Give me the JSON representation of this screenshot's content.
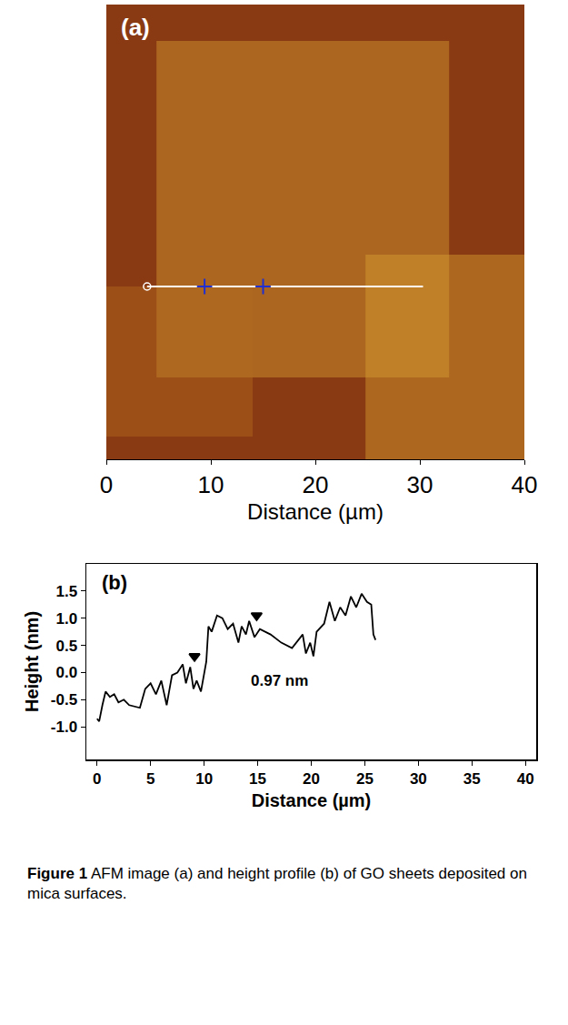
{
  "chart_data": [
    {
      "type": "image",
      "label": "(a)",
      "x_label": "Distance (µm)",
      "xlim": [
        0,
        40
      ],
      "xticks": [
        0,
        10,
        20,
        30,
        40
      ],
      "ylim": [
        0,
        1
      ],
      "tick_labels": "x",
      "series": [
        {
          "type": "line",
          "color": "#ffffff",
          "marker": "circle-open",
          "x": [
            3.9,
            30.3
          ],
          "y": [
            0.38,
            0.38
          ]
        },
        {
          "type": "scatter",
          "color": "#1f2fd0",
          "marker": "cross",
          "x": [
            9.4,
            15.0
          ],
          "y": [
            0.38,
            0.38
          ]
        }
      ]
    },
    {
      "type": "line",
      "label": "(b)",
      "x_label": "Distance (µm)",
      "y_label": "Height (nm)",
      "xlim": [
        -1,
        41
      ],
      "xticks": [
        0,
        5,
        10,
        15,
        20,
        25,
        30,
        35,
        40
      ],
      "ylim": [
        -1.6,
        2.0
      ],
      "yticks": [
        {
          "value": -1,
          "label": "-1.0"
        },
        {
          "value": -0.5,
          "label": "-0.5"
        },
        {
          "value": 0,
          "label": "0.0"
        },
        {
          "value": 0.5,
          "label": "0.5"
        },
        {
          "value": 1,
          "label": "1.0"
        },
        {
          "value": 1.5,
          "label": "1.5"
        }
      ],
      "annotations": [
        {
          "text": "0.97 nm",
          "x": 17,
          "y": -0.15
        }
      ],
      "series": [
        {
          "type": "line",
          "color": "#000000",
          "x": [
            0,
            0.2,
            0.5,
            0.8,
            1.2,
            1.6,
            2,
            2.5,
            3,
            4,
            4.5,
            5,
            5.5,
            6,
            6.5,
            7,
            7.5,
            8,
            8.3,
            8.7,
            9,
            9.3,
            9.7,
            10.2,
            10.4,
            10.7,
            11.2,
            11.7,
            12.2,
            12.7,
            13.2,
            13.5,
            13.9,
            14.2,
            14.7,
            15.2,
            16.2,
            17.2,
            18.2,
            19.2,
            19.5,
            19.9,
            20.2,
            20.5,
            21.2,
            21.7,
            22.2,
            22.7,
            23.2,
            23.7,
            24.2,
            24.7,
            25.2,
            25.6,
            25.8,
            26
          ],
          "values": [
            -0.85,
            -0.9,
            -0.6,
            -0.35,
            -0.45,
            -0.4,
            -0.55,
            -0.5,
            -0.6,
            -0.65,
            -0.3,
            -0.2,
            -0.4,
            -0.15,
            -0.6,
            -0.05,
            0.0,
            0.15,
            -0.2,
            0.1,
            -0.3,
            -0.15,
            -0.35,
            0.2,
            0.85,
            0.75,
            1.05,
            1.0,
            0.8,
            0.9,
            0.55,
            0.85,
            0.7,
            0.95,
            0.65,
            0.8,
            0.7,
            0.55,
            0.45,
            0.7,
            0.35,
            0.55,
            0.3,
            0.75,
            0.9,
            1.3,
            0.95,
            1.2,
            1.05,
            1.4,
            1.2,
            1.45,
            1.3,
            1.25,
            0.7,
            0.6
          ]
        },
        {
          "type": "scatter",
          "color": "#000000",
          "marker": "triangle-down",
          "x": [
            9.1,
            14.9
          ],
          "values": [
            0.3,
            1.05
          ]
        }
      ]
    }
  ],
  "caption": {
    "label": "Figure 1",
    "text": "AFM image (a) and height profile (b) of GO sheets deposited on mica surfaces."
  }
}
